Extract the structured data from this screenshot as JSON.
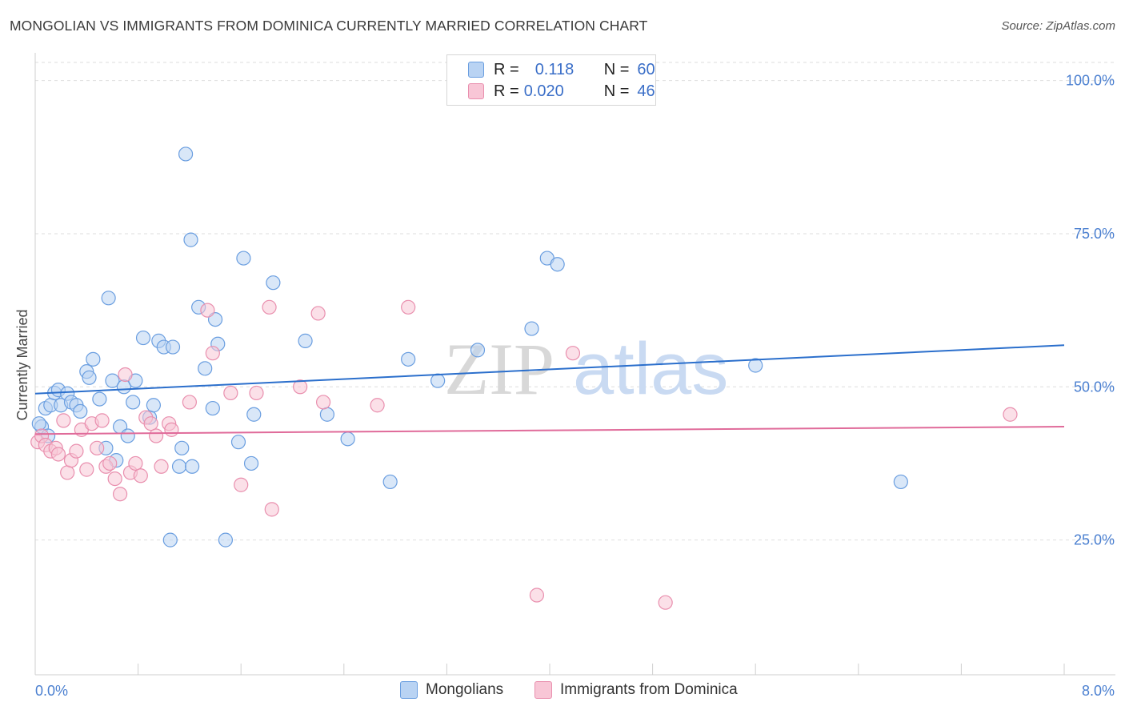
{
  "title": "MONGOLIAN VS IMMIGRANTS FROM DOMINICA CURRENTLY MARRIED CORRELATION CHART",
  "source": "Source: ZipAtlas.com",
  "watermark": {
    "zip": "ZIP",
    "atlas": "atlas"
  },
  "legend": {
    "rows": [
      {
        "r_label": "R =",
        "r_value": "0.118",
        "n_label": "N =",
        "n_value": "60"
      },
      {
        "r_label": "R =",
        "r_value": "0.020",
        "n_label": "N =",
        "n_value": "46"
      }
    ]
  },
  "colors": {
    "blue_fill": "#b9d3f3",
    "blue_stroke": "#6a9ee0",
    "blue_line": "#2b6fcc",
    "pink_fill": "#f8c6d6",
    "pink_stroke": "#e98fae",
    "pink_line": "#e06b9a",
    "tick_text": "#4a7fd0",
    "grid": "#dedede"
  },
  "chart_data": {
    "type": "scatter",
    "title": "MONGOLIAN VS IMMIGRANTS FROM DOMINICA CURRENTLY MARRIED CORRELATION CHART",
    "xlabel": "",
    "ylabel": "Currently Married",
    "xlim": [
      0.0,
      8.0
    ],
    "ylim": [
      3.0,
      104.0
    ],
    "x_tick_labels": [
      "0.0%",
      "8.0%"
    ],
    "y_ticks": [
      25,
      50,
      75,
      100
    ],
    "y_tick_labels": [
      "25.0%",
      "50.0%",
      "75.0%",
      "100.0%"
    ],
    "grid": true,
    "series": [
      {
        "name": "Mongolians",
        "r": 0.118,
        "n": 60,
        "trend": {
          "x": [
            0.0,
            8.0
          ],
          "y": [
            48.9,
            56.8
          ]
        },
        "points": [
          [
            0.05,
            43.5
          ],
          [
            0.08,
            46.5
          ],
          [
            0.1,
            42.0
          ],
          [
            0.12,
            47.0
          ],
          [
            0.15,
            49.0
          ],
          [
            0.18,
            49.5
          ],
          [
            0.2,
            47.0
          ],
          [
            0.25,
            48.9
          ],
          [
            0.28,
            47.5
          ],
          [
            0.32,
            47.0
          ],
          [
            0.35,
            46.0
          ],
          [
            0.4,
            52.5
          ],
          [
            0.42,
            51.5
          ],
          [
            0.45,
            54.5
          ],
          [
            0.5,
            48.0
          ],
          [
            0.55,
            40.0
          ],
          [
            0.57,
            64.5
          ],
          [
            0.6,
            51.0
          ],
          [
            0.63,
            38.0
          ],
          [
            0.66,
            43.5
          ],
          [
            0.69,
            50.0
          ],
          [
            0.72,
            42.0
          ],
          [
            0.78,
            51.0
          ],
          [
            0.76,
            47.5
          ],
          [
            0.84,
            58.0
          ],
          [
            0.89,
            45.0
          ],
          [
            0.92,
            47.0
          ],
          [
            0.96,
            57.5
          ],
          [
            1.0,
            56.5
          ],
          [
            1.07,
            56.5
          ],
          [
            1.12,
            37.0
          ],
          [
            1.14,
            40.0
          ],
          [
            1.17,
            88.0
          ],
          [
            1.21,
            74.0
          ],
          [
            1.22,
            37.0
          ],
          [
            1.27,
            63.0
          ],
          [
            1.32,
            53.0
          ],
          [
            1.38,
            46.5
          ],
          [
            1.4,
            61.0
          ],
          [
            1.42,
            57.0
          ],
          [
            1.05,
            25.0
          ],
          [
            1.48,
            25.0
          ],
          [
            1.58,
            41.0
          ],
          [
            1.62,
            71.0
          ],
          [
            1.68,
            37.5
          ],
          [
            1.7,
            45.5
          ],
          [
            1.85,
            67.0
          ],
          [
            2.1,
            57.5
          ],
          [
            2.27,
            45.5
          ],
          [
            2.43,
            41.5
          ],
          [
            2.76,
            34.5
          ],
          [
            2.9,
            54.5
          ],
          [
            3.13,
            51.0
          ],
          [
            3.44,
            56.0
          ],
          [
            3.86,
            59.5
          ],
          [
            3.98,
            71.0
          ],
          [
            4.06,
            70.0
          ],
          [
            5.6,
            53.5
          ],
          [
            6.73,
            34.5
          ],
          [
            0.03,
            44.0
          ]
        ]
      },
      {
        "name": "Immigrants from Dominica",
        "r": 0.02,
        "n": 46,
        "trend": {
          "x": [
            0.0,
            8.0
          ],
          "y": [
            42.3,
            43.5
          ]
        },
        "points": [
          [
            0.02,
            41.0
          ],
          [
            0.05,
            42.0
          ],
          [
            0.08,
            40.5
          ],
          [
            0.12,
            39.5
          ],
          [
            0.16,
            40.0
          ],
          [
            0.18,
            39.0
          ],
          [
            0.22,
            44.5
          ],
          [
            0.25,
            36.0
          ],
          [
            0.28,
            38.0
          ],
          [
            0.32,
            39.5
          ],
          [
            0.36,
            43.0
          ],
          [
            0.4,
            36.5
          ],
          [
            0.44,
            44.0
          ],
          [
            0.48,
            40.0
          ],
          [
            0.52,
            44.5
          ],
          [
            0.55,
            37.0
          ],
          [
            0.58,
            37.5
          ],
          [
            0.62,
            35.0
          ],
          [
            0.66,
            32.5
          ],
          [
            0.7,
            52.0
          ],
          [
            0.74,
            36.0
          ],
          [
            0.78,
            37.5
          ],
          [
            0.82,
            35.5
          ],
          [
            0.86,
            45.0
          ],
          [
            0.9,
            44.0
          ],
          [
            0.94,
            42.0
          ],
          [
            0.98,
            37.0
          ],
          [
            1.04,
            44.0
          ],
          [
            1.06,
            43.0
          ],
          [
            1.2,
            47.5
          ],
          [
            1.34,
            62.5
          ],
          [
            1.38,
            55.5
          ],
          [
            1.52,
            49.0
          ],
          [
            1.6,
            34.0
          ],
          [
            1.72,
            49.0
          ],
          [
            1.82,
            63.0
          ],
          [
            1.84,
            30.0
          ],
          [
            2.06,
            50.0
          ],
          [
            2.2,
            62.0
          ],
          [
            2.24,
            47.5
          ],
          [
            2.66,
            47.0
          ],
          [
            2.9,
            63.0
          ],
          [
            3.9,
            16.0
          ],
          [
            4.18,
            55.5
          ],
          [
            4.9,
            14.8
          ],
          [
            7.58,
            45.5
          ]
        ]
      }
    ]
  },
  "bottom_legend": {
    "items": [
      {
        "label": "Mongolians"
      },
      {
        "label": "Immigrants from Dominica"
      }
    ]
  }
}
